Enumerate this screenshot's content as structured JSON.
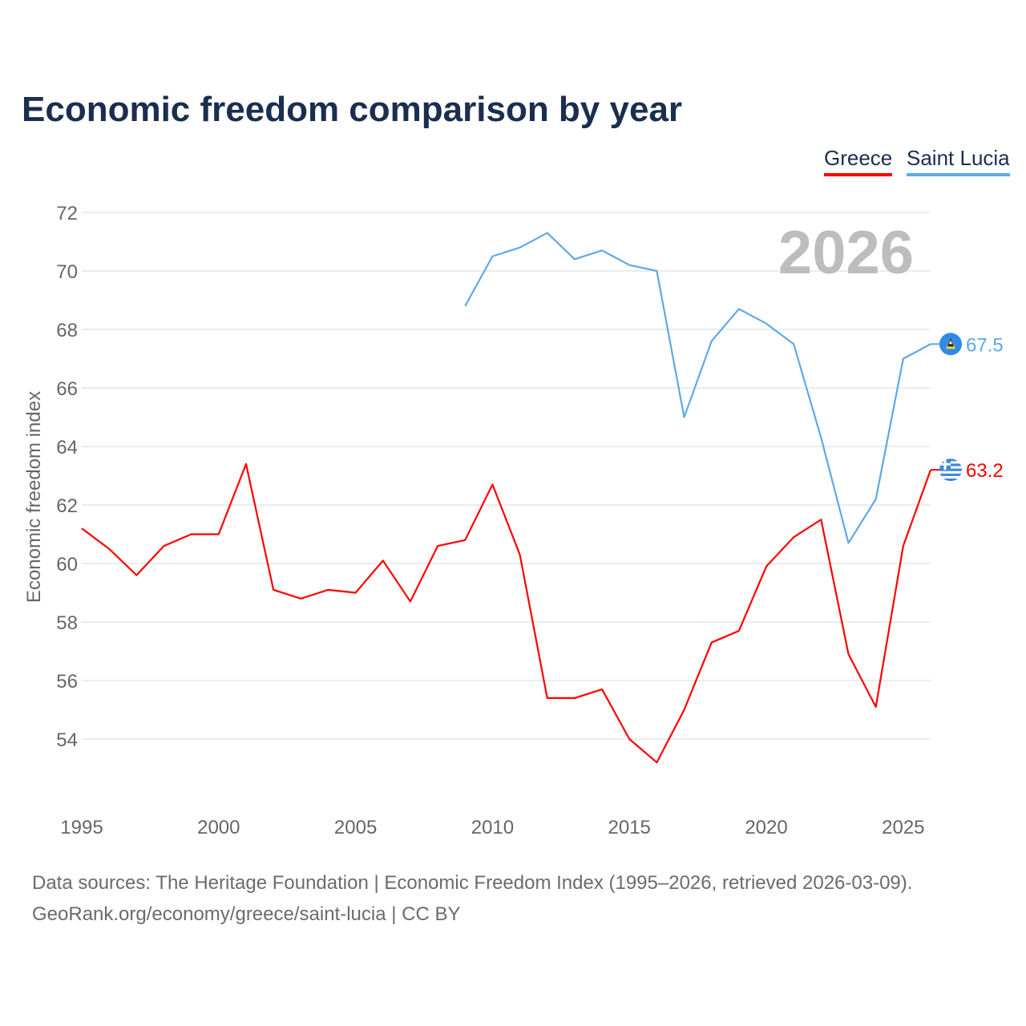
{
  "chart_data": {
    "type": "line",
    "title": "Economic freedom comparison by year",
    "ylabel": "Economic freedom index",
    "xlabel": "",
    "year_label": "2026",
    "xlim": [
      1995,
      2026
    ],
    "ylim": [
      52,
      72
    ],
    "yticks": [
      54,
      56,
      58,
      60,
      62,
      64,
      66,
      68,
      70,
      72
    ],
    "xticks": [
      1995,
      2000,
      2005,
      2010,
      2015,
      2020,
      2025
    ],
    "grid": true,
    "legend_placement": "top-right",
    "series": [
      {
        "name": "Greece",
        "color": "#ff0000",
        "end_label": "63.2",
        "x": [
          1995,
          1996,
          1997,
          1998,
          1999,
          2000,
          2001,
          2002,
          2003,
          2004,
          2005,
          2006,
          2007,
          2008,
          2009,
          2010,
          2011,
          2012,
          2013,
          2014,
          2015,
          2016,
          2017,
          2018,
          2019,
          2020,
          2021,
          2022,
          2023,
          2024,
          2025,
          2026
        ],
        "values": [
          61.2,
          60.5,
          59.6,
          60.6,
          61.0,
          61.0,
          63.4,
          59.1,
          58.8,
          59.1,
          59.0,
          60.1,
          58.7,
          60.6,
          60.8,
          62.7,
          60.3,
          55.4,
          55.4,
          55.7,
          54.0,
          53.2,
          55.0,
          57.3,
          57.7,
          59.9,
          60.9,
          61.5,
          56.9,
          55.1,
          60.6,
          63.2
        ]
      },
      {
        "name": "Saint Lucia",
        "color": "#5fa8ea",
        "end_label": "67.5",
        "x": [
          2009,
          2010,
          2011,
          2012,
          2013,
          2014,
          2015,
          2016,
          2017,
          2018,
          2019,
          2020,
          2021,
          2022,
          2023,
          2024,
          2025,
          2026
        ],
        "values": [
          68.8,
          70.5,
          70.8,
          71.3,
          70.4,
          70.7,
          70.2,
          70.0,
          65.0,
          67.6,
          68.7,
          68.2,
          67.5,
          64.3,
          60.7,
          62.2,
          67.0,
          67.5
        ]
      }
    ]
  },
  "footer": {
    "sources": "Data sources: The Heritage Foundation | Economic Freedom Index (1995–2026, retrieved 2026-03-09).",
    "license": "GeoRank.org/economy/greece/saint-lucia | CC BY"
  }
}
